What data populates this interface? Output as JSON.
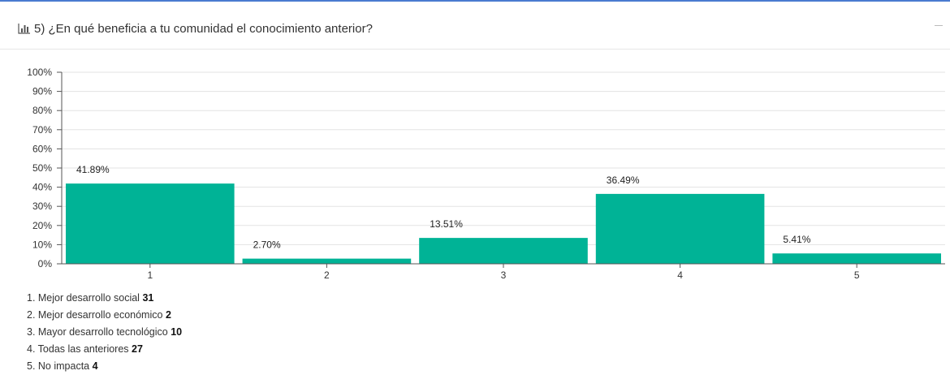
{
  "header": {
    "title": "5) ¿En qué beneficia a tu comunidad el conocimiento anterior?",
    "icon": "bar-chart-icon",
    "collapse_icon": "minus-icon"
  },
  "colors": {
    "bar": "#00b396",
    "accent_border": "#4a7bd0",
    "grid": "#e3e3e3",
    "axis": "#555555"
  },
  "chart_data": {
    "type": "bar",
    "categories": [
      "1",
      "2",
      "3",
      "4",
      "5"
    ],
    "values": [
      41.89,
      2.7,
      13.51,
      36.49,
      5.41
    ],
    "value_labels": [
      "41.89%",
      "2.70%",
      "13.51%",
      "36.49%",
      "5.41%"
    ],
    "ylim": [
      0,
      100
    ],
    "y_ticks": [
      0,
      10,
      20,
      30,
      40,
      50,
      60,
      70,
      80,
      90,
      100
    ],
    "y_tick_labels": [
      "0%",
      "10%",
      "20%",
      "30%",
      "40%",
      "50%",
      "60%",
      "70%",
      "80%",
      "90%",
      "100%"
    ],
    "grid": true
  },
  "legend": [
    {
      "label": "1. Mejor desarrollo social",
      "count": "31"
    },
    {
      "label": "2. Mejor desarrollo económico",
      "count": "2"
    },
    {
      "label": "3. Mayor desarrollo tecnológico",
      "count": "10"
    },
    {
      "label": "4. Todas las anteriores",
      "count": "27"
    },
    {
      "label": "5. No impacta",
      "count": "4"
    }
  ]
}
